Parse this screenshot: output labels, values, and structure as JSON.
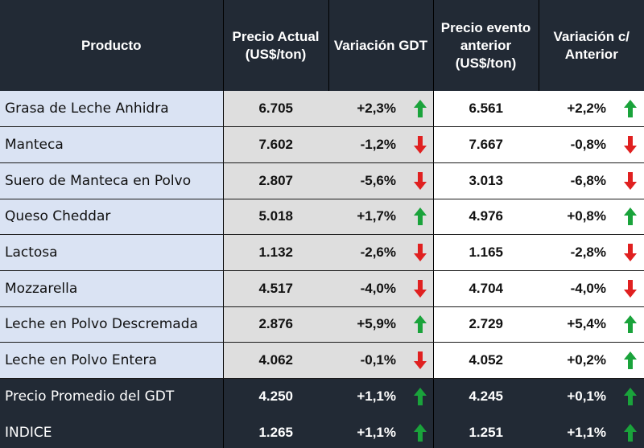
{
  "colors": {
    "up": "#1aa33b",
    "down": "#e02020",
    "header_bg": "#222a35",
    "product_bg": "#dae3f3",
    "current_bg": "#dedede"
  },
  "headers": {
    "product": "Producto",
    "current_price": "Precio Actual (US$/ton)",
    "gdt_change": "Variación GDT",
    "previous_price": "Precio evento anterior (US$/ton)",
    "change_vs_previous": "Variación c/ Anterior"
  },
  "rows": [
    {
      "product": "Grasa de Leche Anhidra",
      "price": "6.705",
      "change": "+2,3%",
      "change_dir": "up",
      "prev_price": "6.561",
      "prev_change": "+2,2%",
      "prev_dir": "up"
    },
    {
      "product": "Manteca",
      "price": "7.602",
      "change": "-1,2%",
      "change_dir": "down",
      "prev_price": "7.667",
      "prev_change": "-0,8%",
      "prev_dir": "down"
    },
    {
      "product": "Suero de Manteca en Polvo",
      "price": "2.807",
      "change": "-5,6%",
      "change_dir": "down",
      "prev_price": "3.013",
      "prev_change": "-6,8%",
      "prev_dir": "down"
    },
    {
      "product": "Queso Cheddar",
      "price": "5.018",
      "change": "+1,7%",
      "change_dir": "up",
      "prev_price": "4.976",
      "prev_change": "+0,8%",
      "prev_dir": "up"
    },
    {
      "product": "Lactosa",
      "price": "1.132",
      "change": "-2,6%",
      "change_dir": "down",
      "prev_price": "1.165",
      "prev_change": "-2,8%",
      "prev_dir": "down"
    },
    {
      "product": "Mozzarella",
      "price": "4.517",
      "change": "-4,0%",
      "change_dir": "down",
      "prev_price": "4.704",
      "prev_change": "-4,0%",
      "prev_dir": "down"
    },
    {
      "product": "Leche en Polvo Descremada",
      "price": "2.876",
      "change": "+5,9%",
      "change_dir": "up",
      "prev_price": "2.729",
      "prev_change": "+5,4%",
      "prev_dir": "up"
    },
    {
      "product": "Leche en Polvo Entera",
      "price": "4.062",
      "change": "-0,1%",
      "change_dir": "down",
      "prev_price": "4.052",
      "prev_change": "+0,2%",
      "prev_dir": "up"
    }
  ],
  "summary": [
    {
      "product": "Precio Promedio del GDT",
      "price": "4.250",
      "change": "+1,1%",
      "change_dir": "up",
      "prev_price": "4.245",
      "prev_change": "+0,1%",
      "prev_dir": "up"
    },
    {
      "product": "INDICE",
      "price": "1.265",
      "change": "+1,1%",
      "change_dir": "up",
      "prev_price": "1.251",
      "prev_change": "+1,1%",
      "prev_dir": "up"
    }
  ]
}
